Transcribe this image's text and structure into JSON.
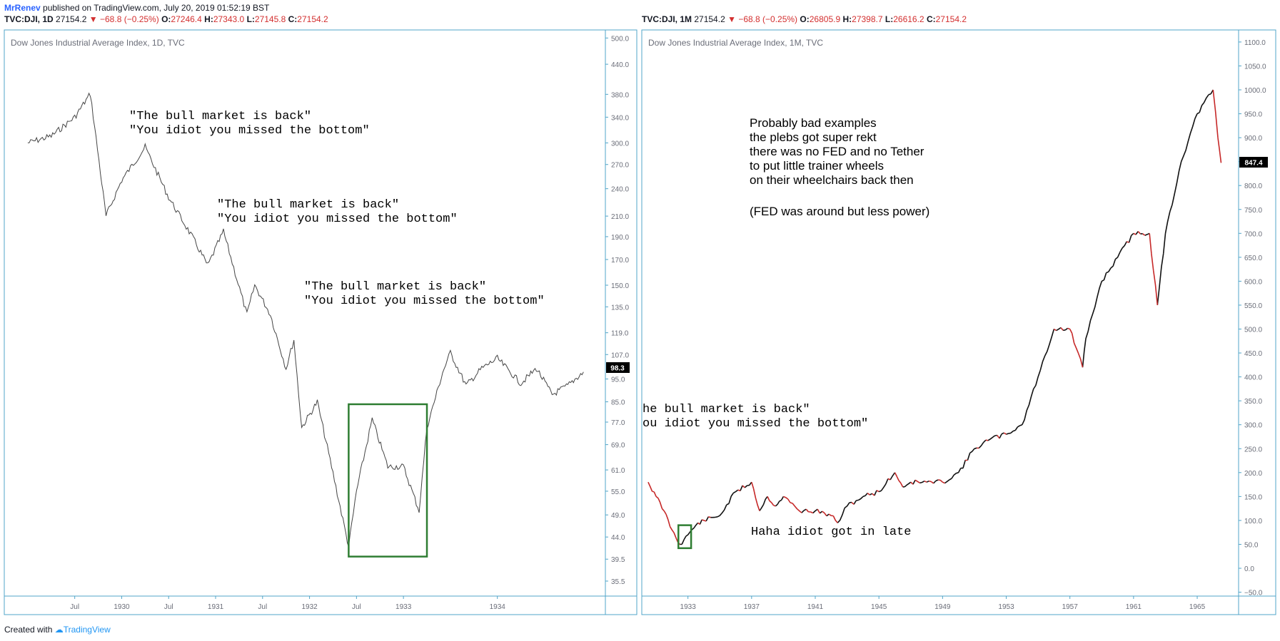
{
  "publication": {
    "author": "MrRenev",
    "text": " published on TradingView.com, July 20, 2019 01:52:19 BST"
  },
  "footer": {
    "created_with": "Created with",
    "brand": "TradingView"
  },
  "charts_meta": [
    {
      "symbol": "TVC:DJI, 1D",
      "price": "27154.2",
      "change": "−68.8 (−0.25%)",
      "O": "27246.4",
      "H": "27343.0",
      "L": "27145.8",
      "C": "27154.2",
      "title": "Dow Jones Industrial Average Index, 1D, TVC",
      "last_label": "98.3",
      "annotations": [
        {
          "line1": "\"The bull market is back\"",
          "line2": "\"You idiot you missed the bottom\""
        },
        {
          "line1": "\"The bull market is back\"",
          "line2": "\"You idiot you missed the bottom\""
        },
        {
          "line1": "\"The bull market is back\"",
          "line2": "\"You idiot you missed the bottom\""
        }
      ]
    },
    {
      "symbol": "TVC:DJI, 1M",
      "price": "27154.2",
      "change": "−68.8 (−0.25%)",
      "O": "26805.9",
      "H": "27398.7",
      "L": "26616.2",
      "C": "27154.2",
      "title": "Dow Jones Industrial Average Index, 1M, TVC",
      "last_label": "847.4",
      "annotations": [
        {
          "lines": [
            "Probably bad examples",
            "the plebs got super rekt",
            "there was no FED and no Tether",
            "to put little trainer wheels",
            "on their wheelchairs back then",
            "",
            "(FED was around but less power)"
          ]
        },
        {
          "line1": "he bull market is back\"",
          "line2": "ou idiot you missed the bottom\""
        },
        {
          "line1": "Haha idiot got in late"
        }
      ]
    }
  ],
  "chart_data": [
    {
      "type": "line",
      "title": "Dow Jones Industrial Average Index, 1D, TVC",
      "scale": "log",
      "y_ticks": [
        "500.0",
        "440.0",
        "380.0",
        "340.0",
        "300.0",
        "270.0",
        "240.0",
        "210.0",
        "190.0",
        "170.0",
        "150.0",
        "135.0",
        "119.0",
        "107.0",
        "95.0",
        "85.0",
        "77.0",
        "69.0",
        "61.0",
        "55.0",
        "49.0",
        "44.0",
        "39.5",
        "35.5"
      ],
      "x_ticks": [
        "Jul",
        "1930",
        "Jul",
        "1931",
        "Jul",
        "1932",
        "Jul",
        "1933",
        "1934"
      ],
      "ylim": [
        33,
        520
      ],
      "series": [
        {
          "x": [
            "1929-01",
            "1929-04",
            "1929-07",
            "1929-09",
            "1929-11",
            "1930-01",
            "1930-04",
            "1930-07",
            "1930-10",
            "1930-12",
            "1931-02",
            "1931-05",
            "1931-06",
            "1931-08",
            "1931-10",
            "1931-11",
            "1931-12",
            "1932-02",
            "1932-04",
            "1932-06",
            "1932-07",
            "1932-09",
            "1932-11",
            "1933-01",
            "1933-03",
            "1933-04",
            "1933-06",
            "1933-07",
            "1933-09",
            "1933-11",
            "1934-01",
            "1934-04",
            "1934-06",
            "1934-08",
            "1934-10",
            "1934-12"
          ],
          "values": [
            300,
            310,
            340,
            381,
            210,
            250,
            294,
            230,
            190,
            165,
            195,
            130,
            150,
            130,
            100,
            115,
            75,
            85,
            60,
            42,
            55,
            78,
            62,
            62,
            50,
            75,
            98,
            108,
            92,
            100,
            105,
            93,
            100,
            88,
            92,
            98.3
          ]
        }
      ],
      "box": {
        "x_start": "1932-06",
        "x_end": "1933-04",
        "y_low": 40,
        "y_high": 84
      }
    },
    {
      "type": "line",
      "title": "Dow Jones Industrial Average Index, 1M, TVC",
      "scale": "linear",
      "y_ticks": [
        "1100.0",
        "1050.0",
        "1000.0",
        "950.0",
        "900.0",
        "850.0",
        "800.0",
        "750.0",
        "700.0",
        "650.0",
        "600.0",
        "550.0",
        "500.0",
        "450.0",
        "400.0",
        "350.0",
        "300.0",
        "250.0",
        "200.0",
        "150.0",
        "100.0",
        "50.0",
        "0.0",
        "−50.0"
      ],
      "x_ticks": [
        "1933",
        "1937",
        "1941",
        "1945",
        "1949",
        "1953",
        "1957",
        "1961",
        "1965"
      ],
      "ylim": [
        -50,
        1100
      ],
      "series": [
        {
          "x": [
            1930.5,
            1931,
            1931.5,
            1932,
            1932.5,
            1933,
            1933.5,
            1934,
            1935,
            1936,
            1937,
            1937.5,
            1938,
            1938.5,
            1939,
            1940,
            1941,
            1942,
            1942.4,
            1943,
            1944,
            1945,
            1946,
            1946.5,
            1947,
            1948,
            1949,
            1950,
            1951,
            1952,
            1953,
            1954,
            1955,
            1956,
            1957,
            1957.8,
            1958,
            1959,
            1960,
            1961,
            1962,
            1962.5,
            1963,
            1964,
            1965,
            1966,
            1966.3,
            1966.5
          ],
          "values": [
            180,
            150,
            120,
            80,
            50,
            70,
            90,
            100,
            110,
            160,
            180,
            120,
            150,
            130,
            150,
            120,
            120,
            110,
            95,
            130,
            150,
            160,
            200,
            170,
            180,
            180,
            180,
            200,
            250,
            270,
            280,
            300,
            400,
            500,
            500,
            420,
            480,
            600,
            650,
            700,
            700,
            550,
            700,
            850,
            950,
            1000,
            900,
            847.4
          ]
        }
      ],
      "box": {
        "x_start": 1932.4,
        "x_end": 1933.2,
        "y_low": 42,
        "y_high": 90
      }
    }
  ]
}
